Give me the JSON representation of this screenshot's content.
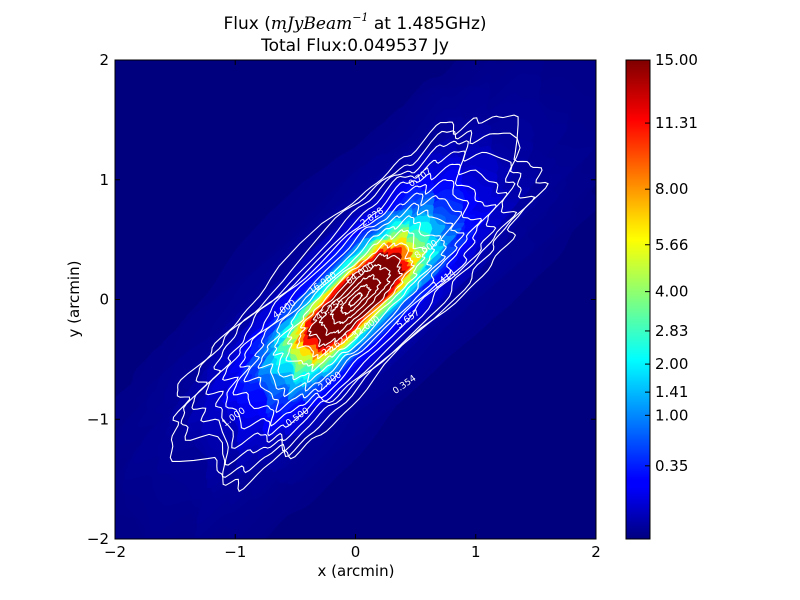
{
  "chart_data": {
    "type": "heatmap",
    "title_prefix": "Flux (",
    "title_math": "mJyBeam",
    "title_exponent": "−1",
    "title_suffix": " at 1.485GHz)",
    "subtitle": "Total Flux:0.049537 Jy",
    "xlabel": "x (arcmin)",
    "ylabel": "y (arcmin)",
    "xlim": [
      -2,
      2
    ],
    "ylim": [
      -2,
      2
    ],
    "x_ticks": [
      -2,
      -1,
      0,
      1,
      2
    ],
    "x_tick_labels": [
      "−2",
      "−1",
      "0",
      "1",
      "2"
    ],
    "y_ticks": [
      -2,
      -1,
      0,
      1,
      2
    ],
    "y_tick_labels": [
      "−2",
      "−1",
      "0",
      "1",
      "2"
    ],
    "colormap": "jet",
    "colorbar": {
      "range": [
        0,
        15
      ],
      "ticks": [
        0.35,
        1.0,
        1.41,
        2.0,
        2.83,
        4.0,
        5.66,
        8.0,
        11.31,
        15.0
      ],
      "tick_labels": [
        "0.35",
        "1.00",
        "1.41",
        "2.00",
        "2.83",
        "4.00",
        "5.66",
        "8.00",
        "11.31",
        "15.00"
      ]
    },
    "source": {
      "peak": 15.0,
      "axis_angle_deg": 45,
      "major_half_length_arcmin": 1.9,
      "minor_half_width_arcmin": 0.6
    },
    "contour_levels": [
      0.354,
      0.5,
      0.707,
      1.0,
      1.414,
      2.0,
      2.828,
      4.0,
      5.657,
      8.0,
      11.314,
      16.0,
      22.627,
      32.0,
      45.255,
      64.0
    ],
    "contour_labels": [
      {
        "text": "0.707",
        "x": 0.55,
        "y": 1.0
      },
      {
        "text": "2.828",
        "x": 0.15,
        "y": 0.67
      },
      {
        "text": "4.000",
        "x": -0.58,
        "y": -0.1
      },
      {
        "text": "1.414",
        "x": 0.75,
        "y": 0.15
      },
      {
        "text": "0.354",
        "x": 0.42,
        "y": -0.73
      },
      {
        "text": "0.500",
        "x": -0.47,
        "y": -1.0
      },
      {
        "text": "1.000",
        "x": -1.0,
        "y": -1.0
      },
      {
        "text": "2.000",
        "x": -0.2,
        "y": -0.7
      },
      {
        "text": "8.000",
        "x": 0.6,
        "y": 0.4
      },
      {
        "text": "5.657",
        "x": 0.45,
        "y": -0.18
      },
      {
        "text": "16.000",
        "x": -0.26,
        "y": 0.12
      },
      {
        "text": "64.000",
        "x": 0.05,
        "y": 0.2
      },
      {
        "text": "45.255",
        "x": -0.2,
        "y": -0.1
      },
      {
        "text": "32.000",
        "x": 0.1,
        "y": -0.25
      },
      {
        "text": "22.627",
        "x": -0.15,
        "y": -0.4
      }
    ]
  }
}
